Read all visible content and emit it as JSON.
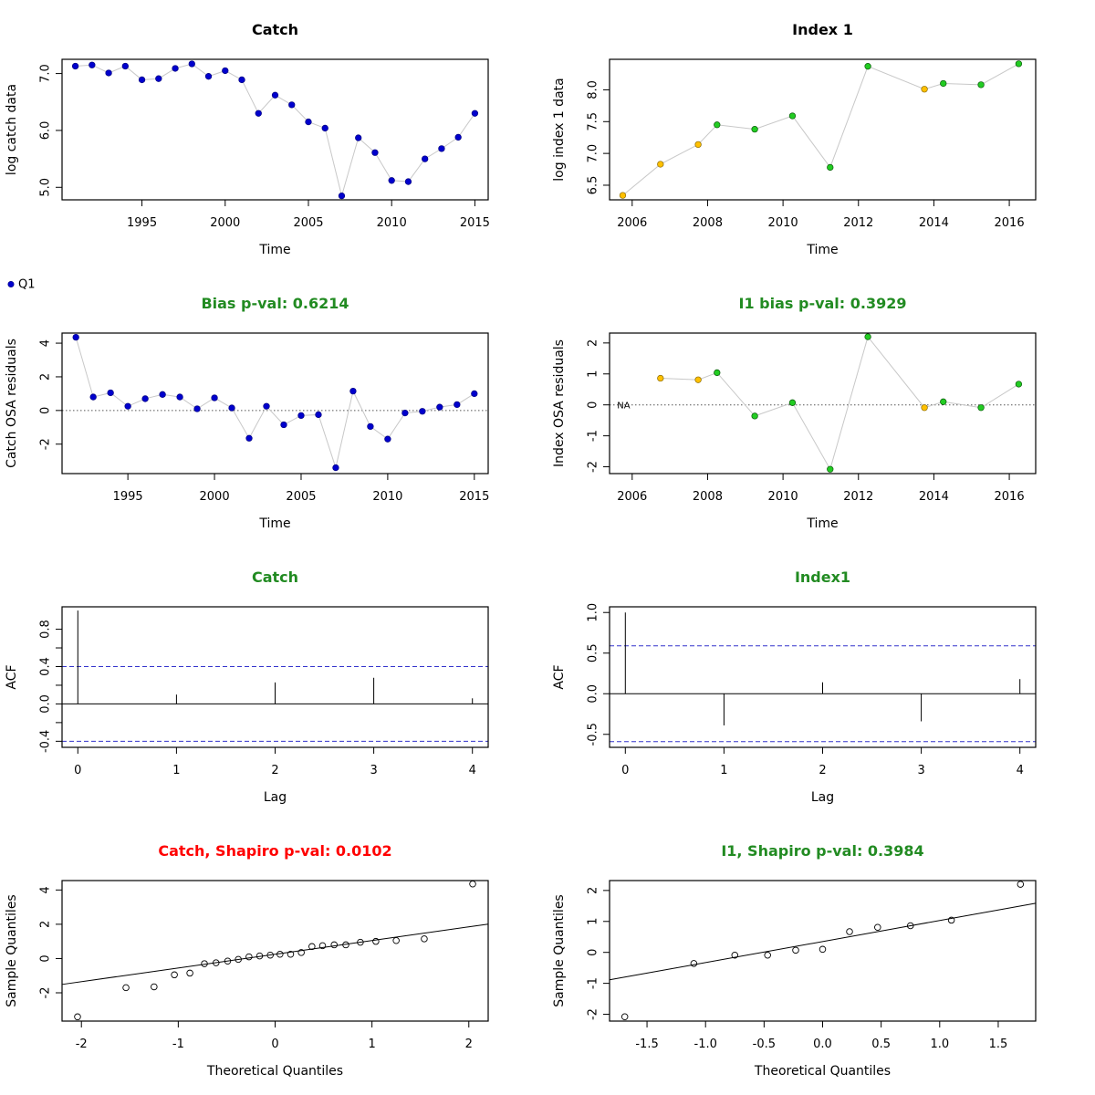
{
  "colors": {
    "blue": "#0000cd",
    "green": "#22cc22",
    "orange": "#ffc000",
    "good": "#228b22",
    "bad": "#ff0000",
    "ci": "#3333cc",
    "line": "#c8c8c8"
  },
  "legend": {
    "label": "Q1"
  },
  "chart_data": [
    {
      "id": "catch-obs",
      "type": "scatter",
      "title": "Catch",
      "title_color": "#000000",
      "xlabel": "Time",
      "ylabel": "log catch data",
      "xlim": [
        1990.2,
        2015.8
      ],
      "ylim": [
        4.78,
        7.25
      ],
      "xticks": [
        1995,
        2000,
        2005,
        2010,
        2015
      ],
      "yticks": [
        5.0,
        6.0,
        7.0
      ],
      "ytick_labels": [
        "5.0",
        "6.0",
        "7.0"
      ],
      "connect": true,
      "x": [
        1991,
        1992,
        1993,
        1994,
        1995,
        1996,
        1997,
        1998,
        1999,
        2000,
        2001,
        2002,
        2003,
        2004,
        2005,
        2006,
        2007,
        2008,
        2009,
        2010,
        2011,
        2012,
        2013,
        2014,
        2015
      ],
      "y": [
        7.13,
        7.15,
        7.01,
        7.13,
        6.89,
        6.91,
        7.09,
        7.17,
        6.95,
        7.05,
        6.89,
        6.3,
        6.62,
        6.45,
        6.15,
        6.04,
        4.85,
        5.87,
        5.61,
        5.12,
        5.1,
        5.5,
        5.68,
        5.88,
        6.3
      ],
      "colors": [
        "blue",
        "blue",
        "blue",
        "blue",
        "blue",
        "blue",
        "blue",
        "blue",
        "blue",
        "blue",
        "blue",
        "blue",
        "blue",
        "blue",
        "blue",
        "blue",
        "blue",
        "blue",
        "blue",
        "blue",
        "blue",
        "blue",
        "blue",
        "blue",
        "blue"
      ]
    },
    {
      "id": "index-obs",
      "type": "scatter",
      "title": "Index 1",
      "title_color": "#000000",
      "xlabel": "Time",
      "ylabel": "log index 1 data",
      "xlim": [
        2005.4,
        2016.7
      ],
      "ylim": [
        6.27,
        8.48
      ],
      "xticks": [
        2006,
        2008,
        2010,
        2012,
        2014,
        2016
      ],
      "yticks": [
        6.5,
        7.0,
        7.5,
        8.0
      ],
      "ytick_labels": [
        "6.5",
        "7.0",
        "7.5",
        "8.0"
      ],
      "connect": true,
      "x": [
        2005.75,
        2006.75,
        2007.75,
        2008.25,
        2009.25,
        2010.25,
        2011.25,
        2012.25,
        2013.75,
        2014.25,
        2015.25,
        2016.25
      ],
      "y": [
        6.34,
        6.83,
        7.14,
        7.45,
        7.38,
        7.59,
        6.78,
        8.37,
        8.01,
        8.1,
        8.08,
        8.41
      ],
      "colors": [
        "orange",
        "orange",
        "orange",
        "green",
        "green",
        "green",
        "green",
        "green",
        "orange",
        "green",
        "green",
        "green"
      ]
    },
    {
      "id": "catch-resid",
      "type": "scatter",
      "title": "Bias p-val: 0.6214",
      "title_color": "#228b22",
      "xlabel": "Time",
      "ylabel": "Catch OSA residuals",
      "xlim": [
        1991.2,
        2015.8
      ],
      "ylim": [
        -3.75,
        4.6
      ],
      "xticks": [
        1995,
        2000,
        2005,
        2010,
        2015
      ],
      "yticks": [
        -2,
        0,
        2,
        4
      ],
      "ytick_labels": [
        "-2",
        "0",
        "2",
        "4"
      ],
      "connect": true,
      "zero_line": true,
      "x": [
        1992,
        1993,
        1994,
        1995,
        1996,
        1997,
        1998,
        1999,
        2000,
        2001,
        2002,
        2003,
        2004,
        2005,
        2006,
        2007,
        2008,
        2009,
        2010,
        2011,
        2012,
        2013,
        2014,
        2015
      ],
      "y": [
        4.35,
        0.8,
        1.05,
        0.25,
        0.7,
        0.95,
        0.8,
        0.1,
        0.75,
        0.15,
        -1.65,
        0.25,
        -0.85,
        -0.3,
        -0.25,
        -3.4,
        1.15,
        -0.95,
        -1.7,
        -0.15,
        -0.05,
        0.2,
        0.35,
        1.0
      ],
      "colors": [
        "blue",
        "blue",
        "blue",
        "blue",
        "blue",
        "blue",
        "blue",
        "blue",
        "blue",
        "blue",
        "blue",
        "blue",
        "blue",
        "blue",
        "blue",
        "blue",
        "blue",
        "blue",
        "blue",
        "blue",
        "blue",
        "blue",
        "blue",
        "blue"
      ]
    },
    {
      "id": "index-resid",
      "type": "scatter",
      "title": "I1 bias p-val: 0.3929",
      "title_color": "#228b22",
      "xlabel": "Time",
      "ylabel": "Index OSA residuals",
      "xlim": [
        2005.4,
        2016.7
      ],
      "ylim": [
        -2.22,
        2.32
      ],
      "xticks": [
        2006,
        2008,
        2010,
        2012,
        2014,
        2016
      ],
      "yticks": [
        -2,
        -1,
        0,
        1,
        2
      ],
      "ytick_labels": [
        "-2",
        "-1",
        "0",
        "1",
        "2"
      ],
      "connect": true,
      "zero_line": true,
      "na_label": {
        "x": 2005.6,
        "y": 0,
        "text": "NA"
      },
      "x": [
        2006.75,
        2007.75,
        2008.25,
        2009.25,
        2010.25,
        2011.25,
        2012.25,
        2013.75,
        2014.25,
        2015.25,
        2016.25
      ],
      "y": [
        0.86,
        0.81,
        1.04,
        -0.36,
        0.07,
        -2.08,
        2.2,
        -0.09,
        0.1,
        -0.09,
        0.67
      ],
      "colors": [
        "orange",
        "orange",
        "green",
        "green",
        "green",
        "green",
        "green",
        "orange",
        "green",
        "green",
        "green"
      ]
    },
    {
      "id": "catch-acf",
      "type": "bar",
      "title": "Catch",
      "title_color": "#228b22",
      "xlabel": "Lag",
      "ylabel": "ACF",
      "xlim": [
        -0.16,
        4.16
      ],
      "ylim": [
        -0.465,
        1.04
      ],
      "xticks": [
        0,
        1,
        2,
        3,
        4
      ],
      "yticks": [
        -0.4,
        0.0,
        0.4,
        0.8
      ],
      "ytick_labels": [
        "-0.4",
        "0.0",
        "0.4",
        "0.8"
      ],
      "minor_yticks": [
        -0.2,
        0.2,
        0.6
      ],
      "lags": [
        0,
        1,
        2,
        3,
        4
      ],
      "values": [
        1.0,
        0.1,
        0.23,
        0.28,
        0.06
      ],
      "ci": 0.4
    },
    {
      "id": "index-acf",
      "type": "bar",
      "title": "Index1",
      "title_color": "#228b22",
      "xlabel": "Lag",
      "ylabel": "ACF",
      "xlim": [
        -0.16,
        4.16
      ],
      "ylim": [
        -0.66,
        1.07
      ],
      "xticks": [
        0,
        1,
        2,
        3,
        4
      ],
      "yticks": [
        -0.5,
        0.0,
        0.5,
        1.0
      ],
      "ytick_labels": [
        "-0.5",
        "0.0",
        "0.5",
        "1.0"
      ],
      "lags": [
        0,
        1,
        2,
        3,
        4
      ],
      "values": [
        1.0,
        -0.39,
        0.14,
        -0.34,
        0.18
      ],
      "ci": 0.59
    },
    {
      "id": "catch-qq",
      "type": "scatter",
      "title": "Catch, Shapiro p-val: 0.0102",
      "title_color": "#ff0000",
      "xlabel": "Theoretical Quantiles",
      "ylabel": "Sample Quantiles",
      "xlim": [
        -2.2,
        2.2
      ],
      "ylim": [
        -3.65,
        4.55
      ],
      "xticks": [
        -2,
        -1,
        0,
        1,
        2
      ],
      "yticks": [
        -2,
        0,
        2,
        4
      ],
      "ytick_labels": [
        "-2",
        "0",
        "2",
        "4"
      ],
      "open_points": true,
      "ref_line": {
        "intercept": 0.25,
        "slope": 0.8
      },
      "x": [
        -2.04,
        -1.54,
        -1.25,
        -1.04,
        -0.88,
        -0.73,
        -0.61,
        -0.49,
        -0.38,
        -0.27,
        -0.16,
        -0.05,
        0.05,
        0.16,
        0.27,
        0.38,
        0.49,
        0.61,
        0.73,
        0.88,
        1.04,
        1.25,
        1.54,
        2.04
      ],
      "y": [
        -3.4,
        -1.7,
        -1.65,
        -0.95,
        -0.85,
        -0.3,
        -0.25,
        -0.15,
        -0.05,
        0.1,
        0.15,
        0.2,
        0.25,
        0.25,
        0.35,
        0.7,
        0.75,
        0.8,
        0.8,
        0.95,
        1.0,
        1.05,
        1.15,
        4.35
      ]
    },
    {
      "id": "index-qq",
      "type": "scatter",
      "title": "I1, Shapiro p-val: 0.3984",
      "title_color": "#228b22",
      "xlabel": "Theoretical Quantiles",
      "ylabel": "Sample Quantiles",
      "xlim": [
        -1.82,
        1.82
      ],
      "ylim": [
        -2.22,
        2.32
      ],
      "xticks": [
        -1.5,
        -1.0,
        -0.5,
        0.0,
        0.5,
        1.0,
        1.5
      ],
      "xtick_labels": [
        "-1.5",
        "-1.0",
        "-0.5",
        "0.0",
        "0.5",
        "1.0",
        "1.5"
      ],
      "yticks": [
        -2,
        -1,
        0,
        1,
        2
      ],
      "ytick_labels": [
        "-2",
        "-1",
        "0",
        "1",
        "2"
      ],
      "open_points": true,
      "ref_line": {
        "intercept": 0.35,
        "slope": 0.68
      },
      "x": [
        -1.69,
        -1.1,
        -0.75,
        -0.47,
        -0.23,
        0.0,
        0.23,
        0.47,
        0.75,
        1.1,
        1.69
      ],
      "y": [
        -2.08,
        -0.36,
        -0.09,
        -0.09,
        0.07,
        0.1,
        0.67,
        0.81,
        0.86,
        1.04,
        2.2
      ]
    }
  ]
}
